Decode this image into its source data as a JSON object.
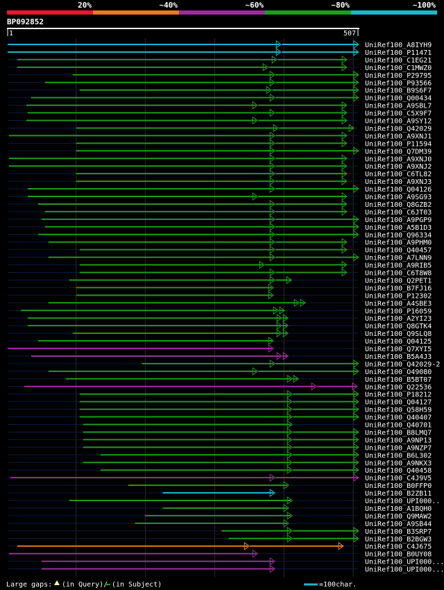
{
  "chart_data": {
    "type": "alignment",
    "query": {
      "name": "BP092852",
      "start": 1,
      "end": 507
    },
    "identity_legend": [
      {
        "label": "20%",
        "color": "#e8192c"
      },
      {
        "label": "~40%",
        "color": "#e87a1e"
      },
      {
        "label": "~60%",
        "color": "#9c2e9c"
      },
      {
        "label": "~80%",
        "color": "#1e9c1e"
      },
      {
        "label": "~100%",
        "color": "#1ab8c8"
      }
    ],
    "hits": [
      {
        "name": "UniRef100_A8IYH9",
        "color": "#1ab8c8",
        "start": 1,
        "end": 507,
        "mid": 394
      },
      {
        "name": "UniRef100_P11471",
        "color": "#1ab8c8",
        "start": 1,
        "end": 507,
        "mid": 394
      },
      {
        "name": "UniRef100_C1EG21",
        "color": "#1e9c1e",
        "start": 15,
        "end": 490,
        "mid": 388
      },
      {
        "name": "UniRef100_C1MWZ0",
        "color": "#1e9c1e",
        "start": 15,
        "end": 490,
        "mid": 375
      },
      {
        "name": "UniRef100_P29795",
        "color": "#1e9c1e",
        "start": 95,
        "end": 507,
        "mid": 385
      },
      {
        "name": "UniRef100_P93566",
        "color": "#1e9c1e",
        "start": 55,
        "end": 507,
        "mid": 385
      },
      {
        "name": "UniRef100_B9S6F7",
        "color": "#1e9c1e",
        "start": 105,
        "end": 507,
        "mid": 380
      },
      {
        "name": "UniRef100_Q00434",
        "color": "#1e9c1e",
        "start": 35,
        "end": 507,
        "mid": 385
      },
      {
        "name": "UniRef100_A9SBL7",
        "color": "#1e9c1e",
        "start": 28,
        "end": 490,
        "mid": 360
      },
      {
        "name": "UniRef100_C5X9F7",
        "color": "#1e9c1e",
        "start": 30,
        "end": 490,
        "mid": 385
      },
      {
        "name": "UniRef100_A9SY12",
        "color": "#1e9c1e",
        "start": 28,
        "end": 490,
        "mid": 360
      },
      {
        "name": "UniRef100_Q42029",
        "color": "#1e9c1e",
        "start": 100,
        "end": 500,
        "mid": 390
      },
      {
        "name": "UniRef100_A9XNJ1",
        "color": "#1e9c1e",
        "start": 3,
        "end": 490,
        "mid": 385
      },
      {
        "name": "UniRef100_P11594",
        "color": "#1e9c1e",
        "start": 100,
        "end": 490,
        "mid": 385
      },
      {
        "name": "UniRef100_Q7DM39",
        "color": "#1e9c1e",
        "start": 100,
        "end": 507,
        "mid": 385
      },
      {
        "name": "UniRef100_A9XNJ0",
        "color": "#1e9c1e",
        "start": 3,
        "end": 490,
        "mid": 385
      },
      {
        "name": "UniRef100_A9XNJ2",
        "color": "#1e9c1e",
        "start": 3,
        "end": 490,
        "mid": 385
      },
      {
        "name": "UniRef100_C6TL82",
        "color": "#1e9c1e",
        "start": 100,
        "end": 490,
        "mid": 385
      },
      {
        "name": "UniRef100_A9XNJ3",
        "color": "#1e9c1e",
        "start": 100,
        "end": 490,
        "mid": 385
      },
      {
        "name": "UniRef100_Q04126",
        "color": "#1e9c1e",
        "start": 30,
        "end": 507,
        "mid": 385
      },
      {
        "name": "UniRef100_A9SG93",
        "color": "#1e9c1e",
        "start": 30,
        "end": 490,
        "mid": 360
      },
      {
        "name": "UniRef100_Q8GZB2",
        "color": "#1e9c1e",
        "start": 45,
        "end": 490,
        "mid": 385
      },
      {
        "name": "UniRef100_C6JT03",
        "color": "#1e9c1e",
        "start": 55,
        "end": 490,
        "mid": 385
      },
      {
        "name": "UniRef100_A9PGP9",
        "color": "#1e9c1e",
        "start": 50,
        "end": 507,
        "mid": 385
      },
      {
        "name": "UniRef100_A5B1D3",
        "color": "#1e9c1e",
        "start": 55,
        "end": 507,
        "mid": 385
      },
      {
        "name": "UniRef100_Q96334",
        "color": "#1e9c1e",
        "start": 45,
        "end": 507,
        "mid": 385
      },
      {
        "name": "UniRef100_A9PHM0",
        "color": "#1e9c1e",
        "start": 60,
        "end": 490,
        "mid": 385
      },
      {
        "name": "UniRef100_Q40457",
        "color": "#1e9c1e",
        "start": 105,
        "end": 490,
        "mid": 385
      },
      {
        "name": "UniRef100_A7LNN9",
        "color": "#1e9c1e",
        "start": 60,
        "end": 507,
        "mid": 385
      },
      {
        "name": "UniRef100_A9RIB5",
        "color": "#1e9c1e",
        "start": 105,
        "end": 490,
        "mid": 370
      },
      {
        "name": "UniRef100_C6T8W8",
        "color": "#1e9c1e",
        "start": 105,
        "end": 490,
        "mid": 385
      },
      {
        "name": "UniRef100_Q2PET1",
        "color": "#1e9c1e",
        "start": 90,
        "end": 410,
        "mid": 385
      },
      {
        "name": "UniRef100_B7FJ16",
        "color": "#1e9c1e",
        "start": 100,
        "end": 383,
        "mid": 383
      },
      {
        "name": "UniRef100_P12302",
        "color": "#1e9c1e",
        "start": 100,
        "end": 383,
        "mid": 383
      },
      {
        "name": "UniRef100_A4SBE3",
        "color": "#1e9c1e",
        "start": 60,
        "end": 430,
        "mid": 420
      },
      {
        "name": "UniRef100_P16059",
        "color": "#1e9c1e",
        "start": 20,
        "end": 400,
        "mid": 390
      },
      {
        "name": "UniRef100_A2YI23",
        "color": "#1e9c1e",
        "start": 30,
        "end": 405,
        "mid": 395
      },
      {
        "name": "UniRef100_Q8GTK4",
        "color": "#1e9c1e",
        "start": 30,
        "end": 405,
        "mid": 395
      },
      {
        "name": "UniRef100_Q9SLQ8",
        "color": "#1e9c1e",
        "start": 95,
        "end": 405,
        "mid": 395
      },
      {
        "name": "UniRef100_Q04125",
        "color": "#1e9c1e",
        "start": 45,
        "end": 383,
        "mid": 383
      },
      {
        "name": "UniRef100_Q7XYI5",
        "color": "#9c2e9c",
        "start": 1,
        "end": 383,
        "mid": 383
      },
      {
        "name": "UniRef100_B5A4J3",
        "color": "#9c2e9c",
        "start": 35,
        "end": 405,
        "mid": 395
      },
      {
        "name": "UniRef100_Q42029-2",
        "color": "#1e9c1e",
        "start": 195,
        "end": 507,
        "mid": 385
      },
      {
        "name": "UniRef100_O49080",
        "color": "#1e9c1e",
        "start": 60,
        "end": 507,
        "mid": 360
      },
      {
        "name": "UniRef100_B5BT07",
        "color": "#1e9c1e",
        "start": 85,
        "end": 420,
        "mid": 410
      },
      {
        "name": "UniRef100_Q22536",
        "color": "#9c2e9c",
        "start": 25,
        "end": 505,
        "mid": 445
      },
      {
        "name": "UniRef100_P18212",
        "color": "#1e9c1e",
        "start": 105,
        "end": 507,
        "mid": 410
      },
      {
        "name": "UniRef100_Q04127",
        "color": "#1e9c1e",
        "start": 105,
        "end": 507,
        "mid": 410
      },
      {
        "name": "UniRef100_Q58H59",
        "color": "#1e9c1e",
        "start": 105,
        "end": 507,
        "mid": 410
      },
      {
        "name": "UniRef100_Q40407",
        "color": "#1e9c1e",
        "start": 105,
        "end": 507,
        "mid": 410
      },
      {
        "name": "UniRef100_Q40701",
        "color": "#1e9c1e",
        "start": 110,
        "end": 410,
        "mid": 410
      },
      {
        "name": "UniRef100_B8LMQ7",
        "color": "#1e9c1e",
        "start": 110,
        "end": 507,
        "mid": 410
      },
      {
        "name": "UniRef100_A9NP13",
        "color": "#1e9c1e",
        "start": 110,
        "end": 507,
        "mid": 410
      },
      {
        "name": "UniRef100_A9NZP7",
        "color": "#1e9c1e",
        "start": 110,
        "end": 507,
        "mid": 410
      },
      {
        "name": "UniRef100_B6L302",
        "color": "#1e9c1e",
        "start": 135,
        "end": 507,
        "mid": 410
      },
      {
        "name": "UniRef100_A9NKX3",
        "color": "#1e9c1e",
        "start": 110,
        "end": 507,
        "mid": 410
      },
      {
        "name": "UniRef100_Q40458",
        "color": "#1e9c1e",
        "start": 135,
        "end": 507,
        "mid": 410
      },
      {
        "name": "UniRef100_C4J9V5",
        "color": "#9c2e9c",
        "start": 5,
        "end": 507,
        "mid": 385
      },
      {
        "name": "UniRef100_B0FFP0",
        "color": "#1e9c1e",
        "start": 175,
        "end": 405,
        "mid": 405
      },
      {
        "name": "UniRef100_B2ZB11",
        "color": "#1ab8c8",
        "start": 225,
        "end": 385,
        "mid": 385
      },
      {
        "name": "UniRef100_UPI000..",
        "color": "#1e9c1e",
        "start": 90,
        "end": 410,
        "mid": 410
      },
      {
        "name": "UniRef100_A1BQH0",
        "color": "#1e9c1e",
        "start": 225,
        "end": 405,
        "mid": 405
      },
      {
        "name": "UniRef100_Q9MAW2",
        "color": "#1e9c1e",
        "start": 200,
        "end": 410,
        "mid": 410
      },
      {
        "name": "UniRef100_A9SB44",
        "color": "#1e9c1e",
        "start": 185,
        "end": 405,
        "mid": 405
      },
      {
        "name": "UniRef100_B3SRP7",
        "color": "#1e9c1e",
        "start": 310,
        "end": 507,
        "mid": 410
      },
      {
        "name": "UniRef100_B2BGW3",
        "color": "#1e9c1e",
        "start": 320,
        "end": 507,
        "mid": 410
      },
      {
        "name": "UniRef100_C4J675",
        "color": "#e87a1e",
        "start": 15,
        "end": 485,
        "mid": 348
      },
      {
        "name": "UniRef100_B0UY08",
        "color": "#9c2e9c",
        "start": 3,
        "end": 360,
        "mid": 360
      },
      {
        "name": "UniRef100_UPI000...",
        "color": "#9c2e9c",
        "start": 50,
        "end": 385,
        "mid": 385
      },
      {
        "name": "UniRef100_UPI000...",
        "color": "#9c2e9c",
        "start": 50,
        "end": 385,
        "mid": 385
      }
    ],
    "footer": {
      "large_gaps": "Large gaps:",
      "in_query": "(in Query)/",
      "in_subject": "(in Subject)",
      "scale_text": "=100char."
    }
  }
}
